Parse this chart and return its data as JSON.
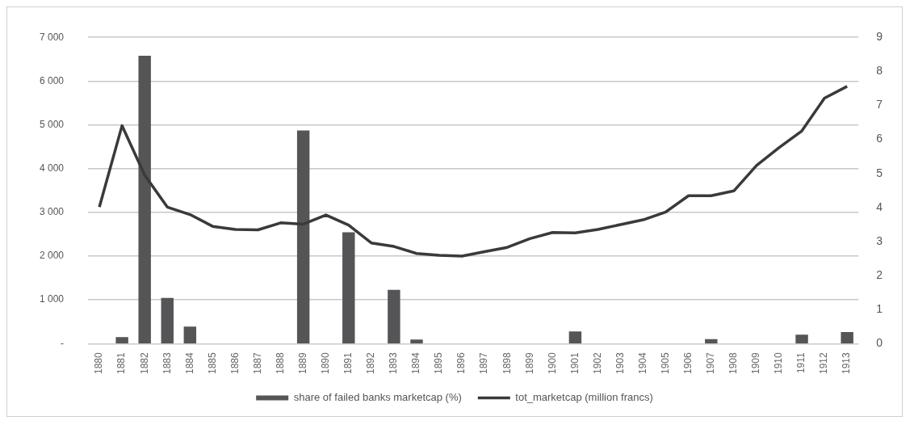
{
  "chart_data": {
    "type": "bar",
    "categories": [
      "1880",
      "1881",
      "1882",
      "1883",
      "1884",
      "1885",
      "1886",
      "1887",
      "1888",
      "1889",
      "1890",
      "1891",
      "1892",
      "1893",
      "1894",
      "1895",
      "1896",
      "1897",
      "1898",
      "1899",
      "1900",
      "1901",
      "1902",
      "1903",
      "1904",
      "1905",
      "1906",
      "1907",
      "1908",
      "1909",
      "1910",
      "1911",
      "1912",
      "1913"
    ],
    "series": [
      {
        "name": "share of failed banks marketcap (%)",
        "axis": "y2",
        "color": "#555558",
        "values": [
          null,
          0.19,
          8.46,
          1.34,
          0.5,
          null,
          null,
          null,
          null,
          6.26,
          null,
          3.27,
          null,
          1.58,
          0.12,
          null,
          null,
          null,
          null,
          null,
          null,
          0.36,
          null,
          null,
          null,
          null,
          null,
          0.13,
          null,
          null,
          null,
          0.26,
          null,
          0.34
        ]
      },
      {
        "name": "tot_marketcap (million francs)",
        "type": "line",
        "color": "#3a3a3a",
        "values": [
          3120,
          4980,
          3850,
          3120,
          2950,
          2680,
          2610,
          2600,
          2760,
          2730,
          2940,
          2710,
          2300,
          2220,
          2060,
          2020,
          2000,
          2100,
          2200,
          2400,
          2540,
          2530,
          2610,
          2720,
          2830,
          3010,
          3380,
          3380,
          3490,
          4070,
          4480,
          4860,
          5610,
          5880
        ]
      }
    ],
    "ylim": [
      0,
      7000
    ],
    "yticks": [
      {
        "value": 0,
        "label": "-"
      },
      {
        "value": 1000,
        "label": "1 000"
      },
      {
        "value": 2000,
        "label": "2 000"
      },
      {
        "value": 3000,
        "label": "3 000"
      },
      {
        "value": 4000,
        "label": "4 000"
      },
      {
        "value": 5000,
        "label": "5 000"
      },
      {
        "value": 6000,
        "label": "6 000"
      },
      {
        "value": 7000,
        "label": "7 000"
      }
    ],
    "y2lim": [
      0,
      9
    ],
    "y2ticks": [
      0,
      1,
      2,
      3,
      4,
      5,
      6,
      7,
      8,
      9
    ],
    "grid": "y",
    "legend": "bottom",
    "marker": "none",
    "line_style": "solid"
  }
}
